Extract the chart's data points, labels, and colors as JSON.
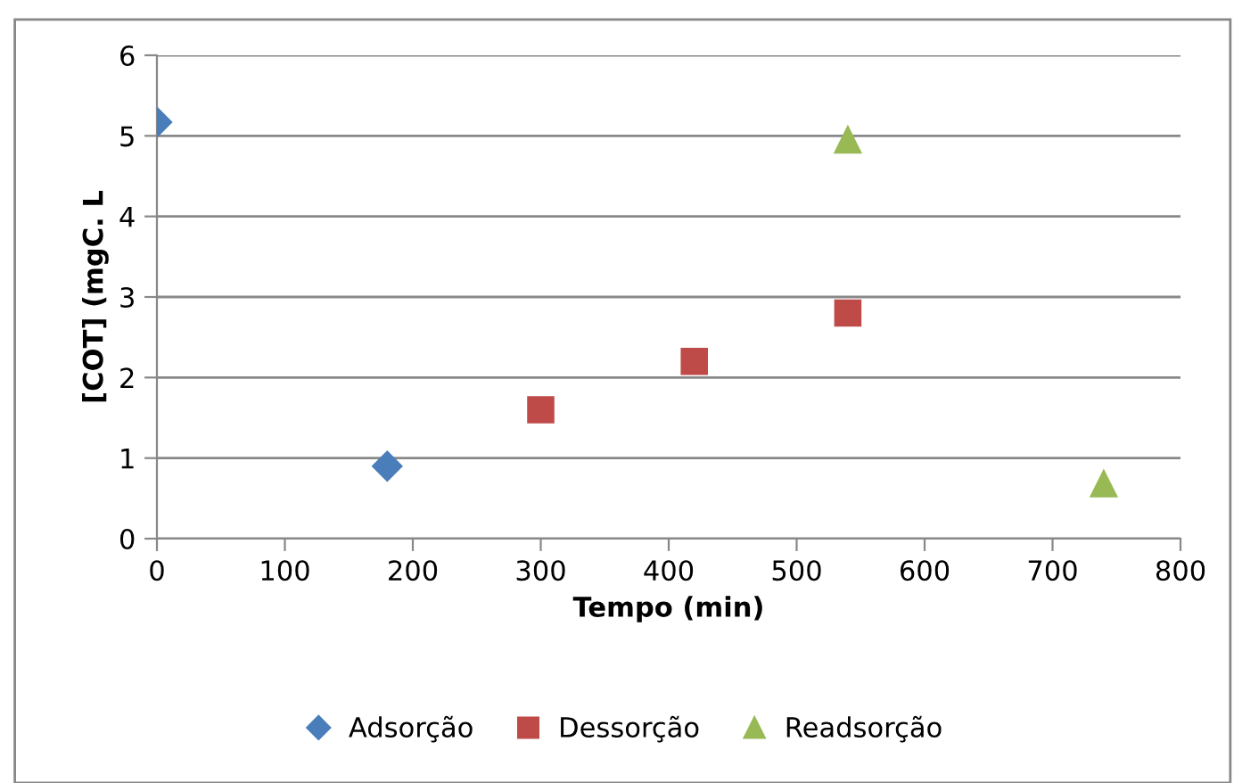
{
  "chart_data": {
    "type": "scatter",
    "xlabel": "Tempo (min)",
    "ylabel": "[COT] (mgC. L",
    "xlim": [
      0,
      800
    ],
    "xticks": [
      0,
      100,
      200,
      300,
      400,
      500,
      600,
      700,
      800
    ],
    "ylim": [
      0,
      6
    ],
    "yticks": [
      0,
      1,
      2,
      3,
      4,
      5,
      6
    ],
    "grid": "y",
    "legend": "bottom",
    "series": [
      {
        "name": "Adsorção",
        "color": "#4a7ebb",
        "marker": "diamond",
        "x": [
          0,
          180
        ],
        "values": [
          5.17,
          0.9
        ]
      },
      {
        "name": "Dessorção",
        "color": "#be4b48",
        "marker": "square",
        "x": [
          300,
          420,
          540
        ],
        "values": [
          1.6,
          2.2,
          2.8
        ]
      },
      {
        "name": "Readsorção",
        "color": "#98b954",
        "marker": "triangle",
        "x": [
          540,
          740
        ],
        "values": [
          4.95,
          0.68
        ]
      }
    ]
  }
}
